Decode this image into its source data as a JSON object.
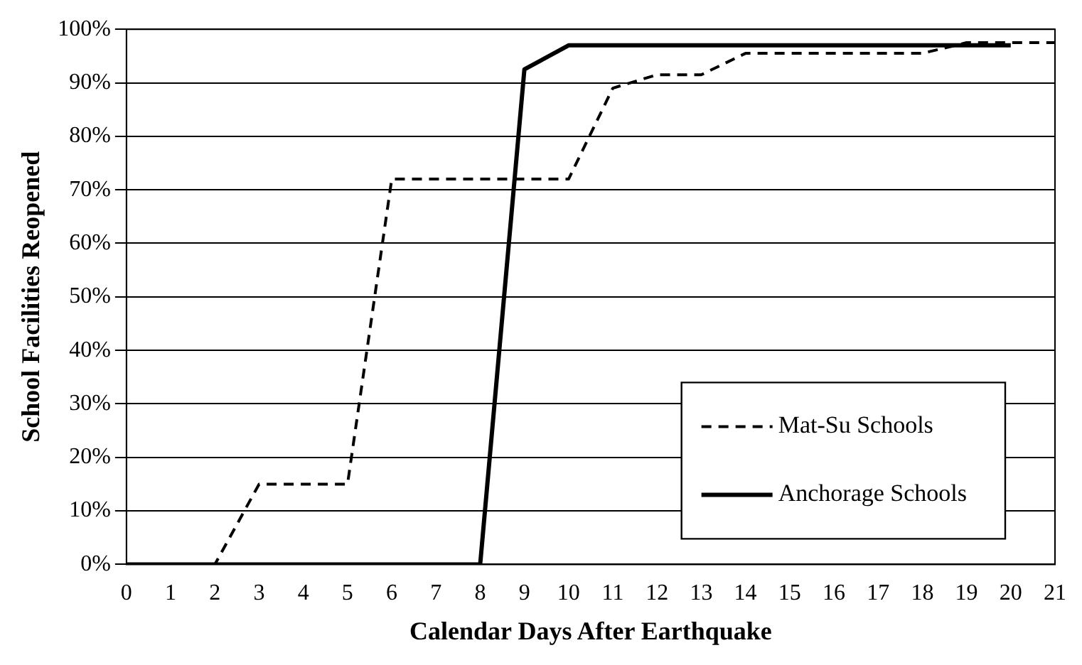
{
  "chart_data": {
    "type": "line",
    "xlabel": "Calendar Days After Earthquake",
    "ylabel": "School Facilities Reopened",
    "xlim": [
      0,
      21
    ],
    "xticks": [
      0,
      1,
      2,
      3,
      4,
      5,
      6,
      7,
      8,
      9,
      10,
      11,
      12,
      13,
      14,
      15,
      16,
      17,
      18,
      19,
      20,
      21
    ],
    "ylim": [
      0,
      100
    ],
    "yticks": [
      {
        "value": 0,
        "label": "0%"
      },
      {
        "value": 10,
        "label": "10%"
      },
      {
        "value": 20,
        "label": "20%"
      },
      {
        "value": 30,
        "label": "30%"
      },
      {
        "value": 40,
        "label": "40%"
      },
      {
        "value": 50,
        "label": "50%"
      },
      {
        "value": 60,
        "label": "60%"
      },
      {
        "value": 70,
        "label": "70%"
      },
      {
        "value": 80,
        "label": "80%"
      },
      {
        "value": 90,
        "label": "90%"
      },
      {
        "value": 100,
        "label": "100%"
      }
    ],
    "grid": "y",
    "legend": "bottom right",
    "marker": "none",
    "series": [
      {
        "name": "Mat-Su Schools",
        "color": "#000000",
        "line_style": "dashed",
        "x": [
          0,
          1,
          2,
          3,
          4,
          5,
          6,
          7,
          8,
          9,
          10,
          11,
          12,
          13,
          14,
          15,
          16,
          17,
          18,
          19,
          20,
          21
        ],
        "values": [
          0,
          0,
          0,
          15,
          15,
          15,
          72,
          72,
          72,
          72,
          72,
          89,
          91.5,
          91.5,
          95.5,
          95.5,
          95.5,
          95.5,
          95.5,
          97.5,
          97.5,
          97.5
        ]
      },
      {
        "name": "Anchorage Schools",
        "color": "#000000",
        "line_style": "solid",
        "x": [
          0,
          1,
          2,
          3,
          4,
          5,
          6,
          7,
          8,
          9,
          10,
          11,
          12,
          13,
          14,
          15,
          16,
          17,
          18,
          19,
          20
        ],
        "values": [
          0,
          0,
          0,
          0,
          0,
          0,
          0,
          0,
          0,
          92.5,
          97,
          97,
          97,
          97,
          97,
          97,
          97,
          97,
          97,
          97,
          97
        ]
      }
    ]
  }
}
